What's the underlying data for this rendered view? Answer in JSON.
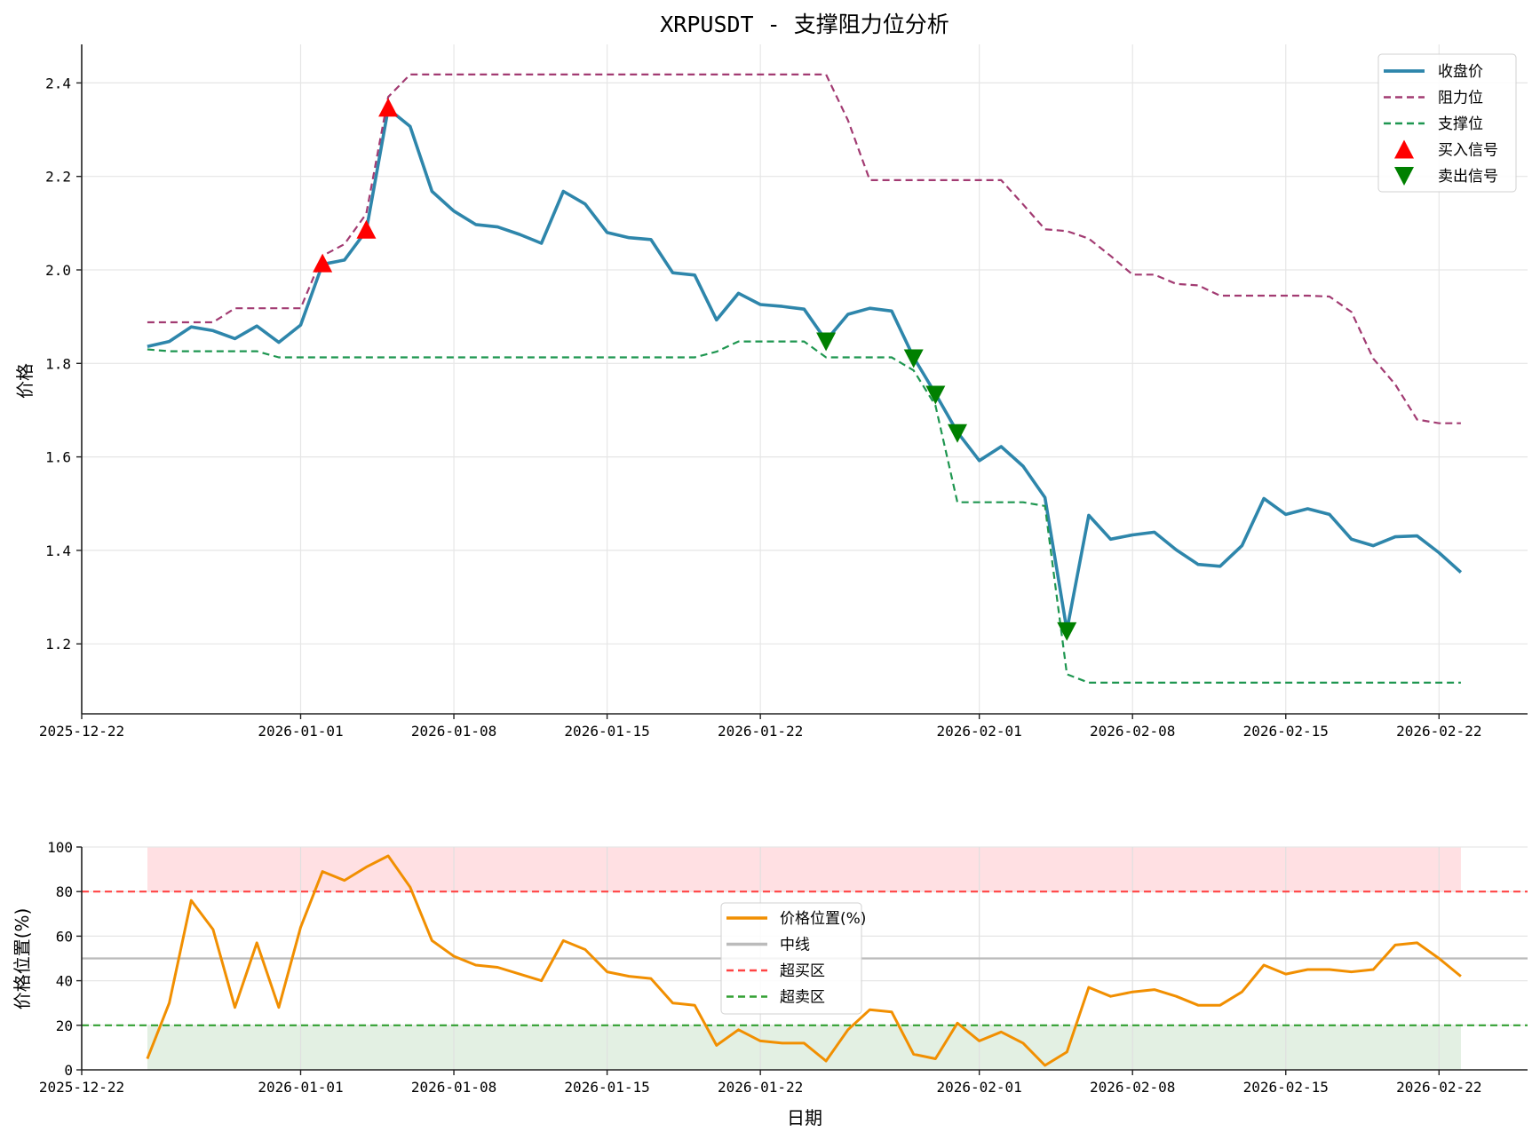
{
  "chart_data": [
    {
      "type": "line",
      "title": "XRPUSDT - 支撑阻力位分析",
      "xlabel": "",
      "ylabel": "价格",
      "ylim": [
        1.05,
        2.49
      ],
      "yticks": [
        1.2,
        1.4,
        1.6,
        1.8,
        2.0,
        2.2,
        2.4
      ],
      "xticks": [
        "2025-12-22",
        "2026-01-01",
        "2026-01-08",
        "2026-01-15",
        "2026-01-22",
        "2026-02-01",
        "2026-02-08",
        "2026-02-15",
        "2026-02-22"
      ],
      "grid": true,
      "legend_position": "upper right",
      "x": [
        "2025-12-25",
        "2025-12-26",
        "2025-12-27",
        "2025-12-28",
        "2025-12-29",
        "2025-12-30",
        "2025-12-31",
        "2026-01-01",
        "2026-01-02",
        "2026-01-03",
        "2026-01-04",
        "2026-01-05",
        "2026-01-06",
        "2026-01-07",
        "2026-01-08",
        "2026-01-09",
        "2026-01-10",
        "2026-01-11",
        "2026-01-12",
        "2026-01-13",
        "2026-01-14",
        "2026-01-15",
        "2026-01-16",
        "2026-01-17",
        "2026-01-18",
        "2026-01-19",
        "2026-01-20",
        "2026-01-21",
        "2026-01-22",
        "2026-01-23",
        "2026-01-24",
        "2026-01-25",
        "2026-01-26",
        "2026-01-27",
        "2026-01-28",
        "2026-01-29",
        "2026-01-30",
        "2026-01-31",
        "2026-02-01",
        "2026-02-02",
        "2026-02-03",
        "2026-02-04",
        "2026-02-05",
        "2026-02-06",
        "2026-02-07",
        "2026-02-08",
        "2026-02-09",
        "2026-02-10",
        "2026-02-11",
        "2026-02-12",
        "2026-02-13",
        "2026-02-14",
        "2026-02-15",
        "2026-02-16",
        "2026-02-17",
        "2026-02-18",
        "2026-02-19",
        "2026-02-20",
        "2026-02-21",
        "2026-02-22",
        "2026-02-23"
      ],
      "series": [
        {
          "name": "收盘价",
          "color": "#2E86AB",
          "style": "solid",
          "values": [
            1.836,
            1.847,
            1.878,
            1.87,
            1.853,
            1.88,
            1.845,
            1.882,
            2.012,
            2.021,
            2.084,
            2.345,
            2.307,
            2.168,
            2.126,
            2.097,
            2.092,
            2.076,
            2.057,
            2.168,
            2.141,
            2.08,
            2.069,
            2.065,
            1.994,
            1.989,
            1.893,
            1.95,
            1.926,
            1.922,
            1.916,
            1.849,
            1.905,
            1.918,
            1.912,
            1.813,
            1.735,
            1.653,
            1.592,
            1.622,
            1.58,
            1.513,
            1.229,
            1.475,
            1.424,
            1.433,
            1.439,
            1.401,
            1.37,
            1.366,
            1.41,
            1.511,
            1.477,
            1.489,
            1.477,
            1.424,
            1.41,
            1.429,
            1.431,
            1.395,
            1.353
          ]
        },
        {
          "name": "阻力位",
          "color": "#A23B72",
          "style": "dashed",
          "values": [
            1.888,
            1.888,
            1.888,
            1.888,
            1.918,
            1.918,
            1.918,
            1.918,
            2.03,
            2.055,
            2.12,
            2.37,
            2.418,
            2.418,
            2.418,
            2.418,
            2.418,
            2.418,
            2.418,
            2.418,
            2.418,
            2.418,
            2.418,
            2.418,
            2.418,
            2.418,
            2.418,
            2.418,
            2.418,
            2.418,
            2.418,
            2.418,
            2.32,
            2.192,
            2.192,
            2.192,
            2.192,
            2.192,
            2.192,
            2.192,
            2.14,
            2.087,
            2.083,
            2.067,
            2.03,
            1.99,
            1.99,
            1.97,
            1.967,
            1.945,
            1.945,
            1.945,
            1.945,
            1.945,
            1.943,
            1.91,
            1.81,
            1.755,
            1.68,
            1.672,
            1.672
          ]
        },
        {
          "name": "支撑位",
          "color": "#1E9650",
          "style": "dashed",
          "values": [
            1.83,
            1.826,
            1.826,
            1.826,
            1.826,
            1.826,
            1.813,
            1.813,
            1.813,
            1.813,
            1.813,
            1.813,
            1.813,
            1.813,
            1.813,
            1.813,
            1.813,
            1.813,
            1.813,
            1.813,
            1.813,
            1.813,
            1.813,
            1.813,
            1.813,
            1.813,
            1.825,
            1.847,
            1.847,
            1.847,
            1.847,
            1.813,
            1.813,
            1.813,
            1.813,
            1.785,
            1.71,
            1.503,
            1.503,
            1.503,
            1.503,
            1.495,
            1.135,
            1.117,
            1.117,
            1.117,
            1.117,
            1.117,
            1.117,
            1.117,
            1.117,
            1.117,
            1.117,
            1.117,
            1.117,
            1.117,
            1.117,
            1.117,
            1.117,
            1.117,
            1.117
          ]
        }
      ],
      "markers": [
        {
          "name": "买入信号",
          "color": "#FF0000",
          "shape": "triangle-up",
          "points": [
            [
              "2026-01-02",
              2.012
            ],
            [
              "2026-01-04",
              2.084
            ],
            [
              "2026-01-05",
              2.345
            ]
          ]
        },
        {
          "name": "卖出信号",
          "color": "#008000",
          "shape": "triangle-down",
          "points": [
            [
              "2026-01-25",
              1.849
            ],
            [
              "2026-01-29",
              1.813
            ],
            [
              "2026-01-30",
              1.735
            ],
            [
              "2026-01-31",
              1.653
            ],
            [
              "2026-02-05",
              1.229
            ]
          ]
        }
      ]
    },
    {
      "type": "line",
      "title": "",
      "xlabel": "日期",
      "ylabel": "价格位置(%)",
      "ylim": [
        0,
        100
      ],
      "yticks": [
        0,
        20,
        40,
        60,
        80,
        100
      ],
      "xticks": [
        "2025-12-22",
        "2026-01-01",
        "2026-01-08",
        "2026-01-15",
        "2026-01-22",
        "2026-02-01",
        "2026-02-08",
        "2026-02-15",
        "2026-02-22"
      ],
      "grid": true,
      "legend_position": "center",
      "series": [
        {
          "name": "价格位置(%)",
          "color": "#F18F01",
          "style": "solid",
          "values": [
            5,
            30,
            76,
            63,
            28,
            57,
            28,
            64,
            89,
            85,
            91,
            96,
            82,
            58,
            51,
            47,
            46,
            43,
            40,
            58,
            54,
            44,
            42,
            41,
            30,
            29,
            11,
            18,
            13,
            12,
            12,
            4,
            18,
            27,
            26,
            7,
            5,
            21,
            13,
            17,
            12,
            2,
            8,
            37,
            33,
            35,
            36,
            33,
            29,
            29,
            35,
            47,
            43,
            45,
            45,
            44,
            45,
            56,
            57,
            50,
            42
          ]
        },
        {
          "name": "中线",
          "color": "#BBBBBB",
          "style": "solid",
          "value": 50
        },
        {
          "name": "超买区",
          "color": "#FF4444",
          "style": "dashed",
          "value": 80
        },
        {
          "name": "超卖区",
          "color": "#33A033",
          "style": "dashed",
          "value": 20
        }
      ],
      "bands": [
        {
          "from": 80,
          "to": 100,
          "color": "#FFE0E3"
        },
        {
          "from": 0,
          "to": 20,
          "color": "#E3F0E3"
        }
      ]
    }
  ]
}
